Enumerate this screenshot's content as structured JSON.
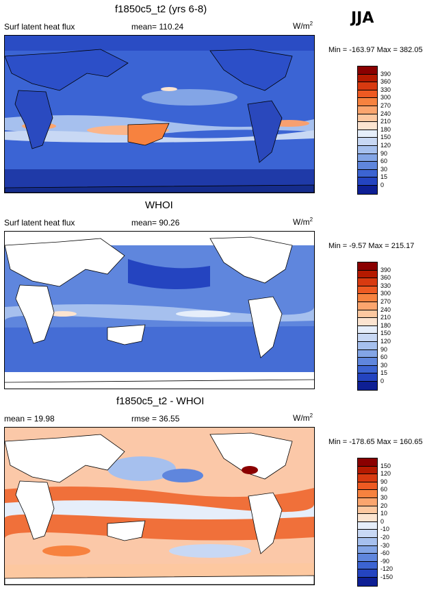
{
  "season": "JJA",
  "panels": [
    {
      "title": "f1850c5_t2 (yrs 6-8)",
      "left_label": "Surf latent heat flux",
      "stat_label": "mean= 110.24",
      "units": "W/m",
      "units_sup": "2",
      "minmax": "Min = -163.97 Max = 382.05",
      "colorbar_labels": [
        "390",
        "360",
        "330",
        "300",
        "270",
        "240",
        "210",
        "180",
        "150",
        "120",
        "90",
        "60",
        "30",
        "15",
        "0"
      ],
      "colorbar_colors": [
        "#8a0000",
        "#b51a00",
        "#d83a10",
        "#ee5a22",
        "#f7823f",
        "#fba56e",
        "#fdc8a0",
        "#fce4d0",
        "#e6eefa",
        "#c8d8f4",
        "#a6c0ee",
        "#83a5e6",
        "#5f86dd",
        "#3c64d2",
        "#2444c0",
        "#0e1f94"
      ]
    },
    {
      "title": "WHOI",
      "left_label": "Surf latent heat flux",
      "stat_label": "mean=  90.26",
      "units": "W/m",
      "units_sup": "2",
      "minmax": "Min =  -9.57 Max = 215.17",
      "colorbar_labels": [
        "390",
        "360",
        "330",
        "300",
        "270",
        "240",
        "210",
        "180",
        "150",
        "120",
        "90",
        "60",
        "30",
        "15",
        "0"
      ],
      "colorbar_colors": [
        "#8a0000",
        "#b51a00",
        "#d83a10",
        "#ee5a22",
        "#f7823f",
        "#fba56e",
        "#fdc8a0",
        "#fce4d0",
        "#e6eefa",
        "#c8d8f4",
        "#a6c0ee",
        "#83a5e6",
        "#5f86dd",
        "#3c64d2",
        "#2444c0",
        "#0e1f94"
      ]
    },
    {
      "title": "f1850c5_t2 - WHOI",
      "left_label": "mean =  19.98",
      "stat_label": "rmse =  36.55",
      "units": "W/m",
      "units_sup": "2",
      "minmax": "Min = -178.65 Max = 160.65",
      "colorbar_labels": [
        "150",
        "120",
        "90",
        "60",
        "30",
        "20",
        "10",
        "0",
        "-10",
        "-20",
        "-30",
        "-60",
        "-90",
        "-120",
        "-150"
      ],
      "colorbar_colors": [
        "#8a0000",
        "#b51a00",
        "#d83a10",
        "#ee5a22",
        "#f7823f",
        "#fba56e",
        "#fdc8a0",
        "#fce4d0",
        "#e6eefa",
        "#c8d8f4",
        "#a6c0ee",
        "#83a5e6",
        "#5f86dd",
        "#3c64d2",
        "#2444c0",
        "#0e1f94"
      ]
    }
  ]
}
